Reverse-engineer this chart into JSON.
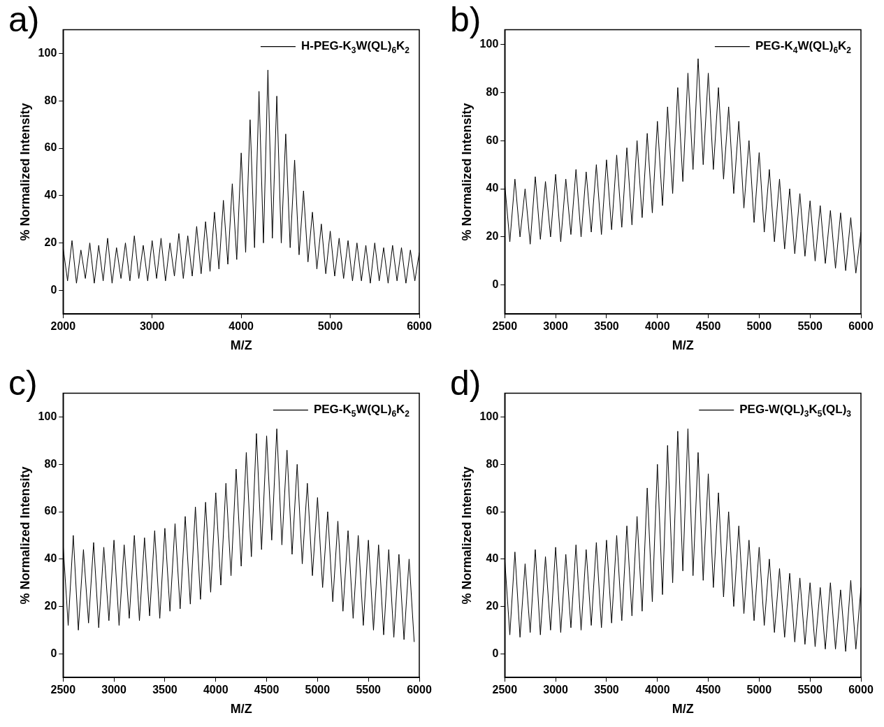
{
  "chart_data": [
    {
      "type": "line",
      "annotations": [
        "a)"
      ],
      "xlabel": "M/Z",
      "ylabel": "% Normalized Intensity",
      "legend": "top right",
      "xlim": [
        2000,
        6000
      ],
      "xticks": [
        2000,
        3000,
        4000,
        5000,
        6000
      ],
      "ylim": [
        -10,
        110
      ],
      "yticks": [
        0,
        20,
        40,
        60,
        80,
        100
      ],
      "x": [
        2000,
        2050,
        2100,
        2150,
        2200,
        2250,
        2300,
        2350,
        2400,
        2450,
        2500,
        2550,
        2600,
        2650,
        2700,
        2750,
        2800,
        2850,
        2900,
        2950,
        3000,
        3050,
        3100,
        3150,
        3200,
        3250,
        3300,
        3350,
        3400,
        3450,
        3500,
        3550,
        3600,
        3650,
        3700,
        3750,
        3800,
        3850,
        3900,
        3950,
        4000,
        4050,
        4100,
        4150,
        4200,
        4250,
        4300,
        4350,
        4400,
        4450,
        4500,
        4550,
        4600,
        4650,
        4700,
        4750,
        4800,
        4850,
        4900,
        4950,
        5000,
        5050,
        5100,
        5150,
        5200,
        5250,
        5300,
        5350,
        5400,
        5450,
        5500,
        5550,
        5600,
        5650,
        5700,
        5750,
        5800,
        5850,
        5900,
        5950,
        6000
      ],
      "series": [
        {
          "name": "H-PEG-K$_{3}$W(QL)$_{6}$K$_{2}$",
          "color": "#000000",
          "values": [
            18,
            4,
            21,
            3,
            17,
            5,
            20,
            3,
            19,
            4,
            22,
            3,
            18,
            5,
            20,
            4,
            23,
            5,
            19,
            4,
            21,
            5,
            22,
            4,
            20,
            6,
            24,
            5,
            23,
            6,
            27,
            7,
            29,
            8,
            33,
            9,
            38,
            11,
            45,
            13,
            58,
            16,
            72,
            18,
            84,
            20,
            93,
            22,
            82,
            20,
            66,
            18,
            55,
            15,
            42,
            12,
            33,
            9,
            28,
            7,
            25,
            6,
            22,
            5,
            21,
            4,
            20,
            4,
            19,
            3,
            20,
            4,
            18,
            3,
            19,
            4,
            18,
            3,
            17,
            4,
            16
          ]
        }
      ]
    },
    {
      "type": "line",
      "annotations": [
        "b)"
      ],
      "xlabel": "M/Z",
      "ylabel": "% Normalized Intensity",
      "legend": "top right",
      "xlim": [
        2500,
        6000
      ],
      "xticks": [
        2500,
        3000,
        3500,
        4000,
        4500,
        5000,
        5500,
        6000
      ],
      "ylim": [
        -12,
        106
      ],
      "yticks": [
        0,
        20,
        40,
        60,
        80,
        100
      ],
      "x": [
        2500,
        2550,
        2600,
        2650,
        2700,
        2750,
        2800,
        2850,
        2900,
        2950,
        3000,
        3050,
        3100,
        3150,
        3200,
        3250,
        3300,
        3350,
        3400,
        3450,
        3500,
        3550,
        3600,
        3650,
        3700,
        3750,
        3800,
        3850,
        3900,
        3950,
        4000,
        4050,
        4100,
        4150,
        4200,
        4250,
        4300,
        4350,
        4400,
        4450,
        4500,
        4550,
        4600,
        4650,
        4700,
        4750,
        4800,
        4850,
        4900,
        4950,
        5000,
        5050,
        5100,
        5150,
        5200,
        5250,
        5300,
        5350,
        5400,
        5450,
        5500,
        5550,
        5600,
        5650,
        5700,
        5750,
        5800,
        5850,
        5900,
        5950,
        6000
      ],
      "series": [
        {
          "name": "PEG-K$_{4}$W(QL)$_{6}$K$_{2}$",
          "color": "#000000",
          "values": [
            42,
            18,
            44,
            20,
            40,
            17,
            45,
            19,
            43,
            20,
            46,
            18,
            44,
            21,
            48,
            20,
            47,
            22,
            50,
            21,
            52,
            23,
            54,
            24,
            57,
            25,
            60,
            28,
            63,
            30,
            68,
            33,
            74,
            38,
            82,
            43,
            88,
            48,
            94,
            50,
            88,
            48,
            82,
            44,
            74,
            38,
            68,
            32,
            60,
            26,
            55,
            22,
            48,
            18,
            44,
            15,
            40,
            13,
            38,
            12,
            35,
            10,
            33,
            9,
            31,
            7,
            30,
            6,
            28,
            5,
            22
          ]
        }
      ]
    },
    {
      "type": "line",
      "annotations": [
        "c)"
      ],
      "xlabel": "M/Z",
      "ylabel": "% Normalized Intensity",
      "legend": "top right",
      "xlim": [
        2500,
        6000
      ],
      "xticks": [
        2500,
        3000,
        3500,
        4000,
        4500,
        5000,
        5500,
        6000
      ],
      "ylim": [
        -10,
        110
      ],
      "yticks": [
        0,
        20,
        40,
        60,
        80,
        100
      ],
      "x": [
        2500,
        2550,
        2600,
        2650,
        2700,
        2750,
        2800,
        2850,
        2900,
        2950,
        3000,
        3050,
        3100,
        3150,
        3200,
        3250,
        3300,
        3350,
        3400,
        3450,
        3500,
        3550,
        3600,
        3650,
        3700,
        3750,
        3800,
        3850,
        3900,
        3950,
        4000,
        4050,
        4100,
        4150,
        4200,
        4250,
        4300,
        4350,
        4400,
        4450,
        4500,
        4550,
        4600,
        4650,
        4700,
        4750,
        4800,
        4850,
        4900,
        4950,
        5000,
        5050,
        5100,
        5150,
        5200,
        5250,
        5300,
        5350,
        5400,
        5450,
        5500,
        5550,
        5600,
        5650,
        5700,
        5750,
        5800,
        5850,
        5900,
        5950
      ],
      "series": [
        {
          "name": "PEG-K$_{5}$W(QL)$_{6}$K$_{2}$",
          "color": "#000000",
          "values": [
            46,
            12,
            50,
            10,
            44,
            13,
            47,
            11,
            45,
            14,
            48,
            12,
            46,
            15,
            50,
            14,
            49,
            16,
            52,
            15,
            53,
            18,
            55,
            19,
            58,
            21,
            62,
            23,
            64,
            26,
            68,
            29,
            72,
            33,
            78,
            37,
            85,
            41,
            93,
            44,
            92,
            48,
            95,
            46,
            86,
            42,
            80,
            38,
            72,
            33,
            66,
            28,
            60,
            22,
            56,
            18,
            52,
            15,
            50,
            12,
            48,
            10,
            46,
            8,
            44,
            7,
            42,
            6,
            40,
            5
          ]
        }
      ]
    },
    {
      "type": "line",
      "annotations": [
        "d)"
      ],
      "xlabel": "M/Z",
      "ylabel": "% Normalized Intensity",
      "legend": "top right",
      "xlim": [
        2500,
        6000
      ],
      "xticks": [
        2500,
        3000,
        3500,
        4000,
        4500,
        5000,
        5500,
        6000
      ],
      "ylim": [
        -10,
        110
      ],
      "yticks": [
        0,
        20,
        40,
        60,
        80,
        100
      ],
      "x": [
        2500,
        2550,
        2600,
        2650,
        2700,
        2750,
        2800,
        2850,
        2900,
        2950,
        3000,
        3050,
        3100,
        3150,
        3200,
        3250,
        3300,
        3350,
        3400,
        3450,
        3500,
        3550,
        3600,
        3650,
        3700,
        3750,
        3800,
        3850,
        3900,
        3950,
        4000,
        4050,
        4100,
        4150,
        4200,
        4250,
        4300,
        4350,
        4400,
        4450,
        4500,
        4550,
        4600,
        4650,
        4700,
        4750,
        4800,
        4850,
        4900,
        4950,
        5000,
        5050,
        5100,
        5150,
        5200,
        5250,
        5300,
        5350,
        5400,
        5450,
        5500,
        5550,
        5600,
        5650,
        5700,
        5750,
        5800,
        5850,
        5900,
        5950,
        6000
      ],
      "series": [
        {
          "name": "PEG-W(QL)$_{3}$K$_{5}$(QL)$_{3}$",
          "color": "#000000",
          "values": [
            40,
            8,
            43,
            7,
            38,
            9,
            44,
            8,
            41,
            10,
            45,
            9,
            42,
            11,
            46,
            10,
            44,
            12,
            47,
            11,
            48,
            13,
            50,
            14,
            54,
            16,
            58,
            18,
            70,
            22,
            80,
            25,
            88,
            30,
            94,
            35,
            95,
            33,
            85,
            31,
            76,
            28,
            68,
            24,
            60,
            20,
            54,
            17,
            48,
            14,
            45,
            12,
            40,
            9,
            36,
            7,
            34,
            5,
            32,
            4,
            30,
            3,
            28,
            2,
            30,
            2,
            27,
            1,
            31,
            2,
            28
          ]
        }
      ]
    }
  ]
}
